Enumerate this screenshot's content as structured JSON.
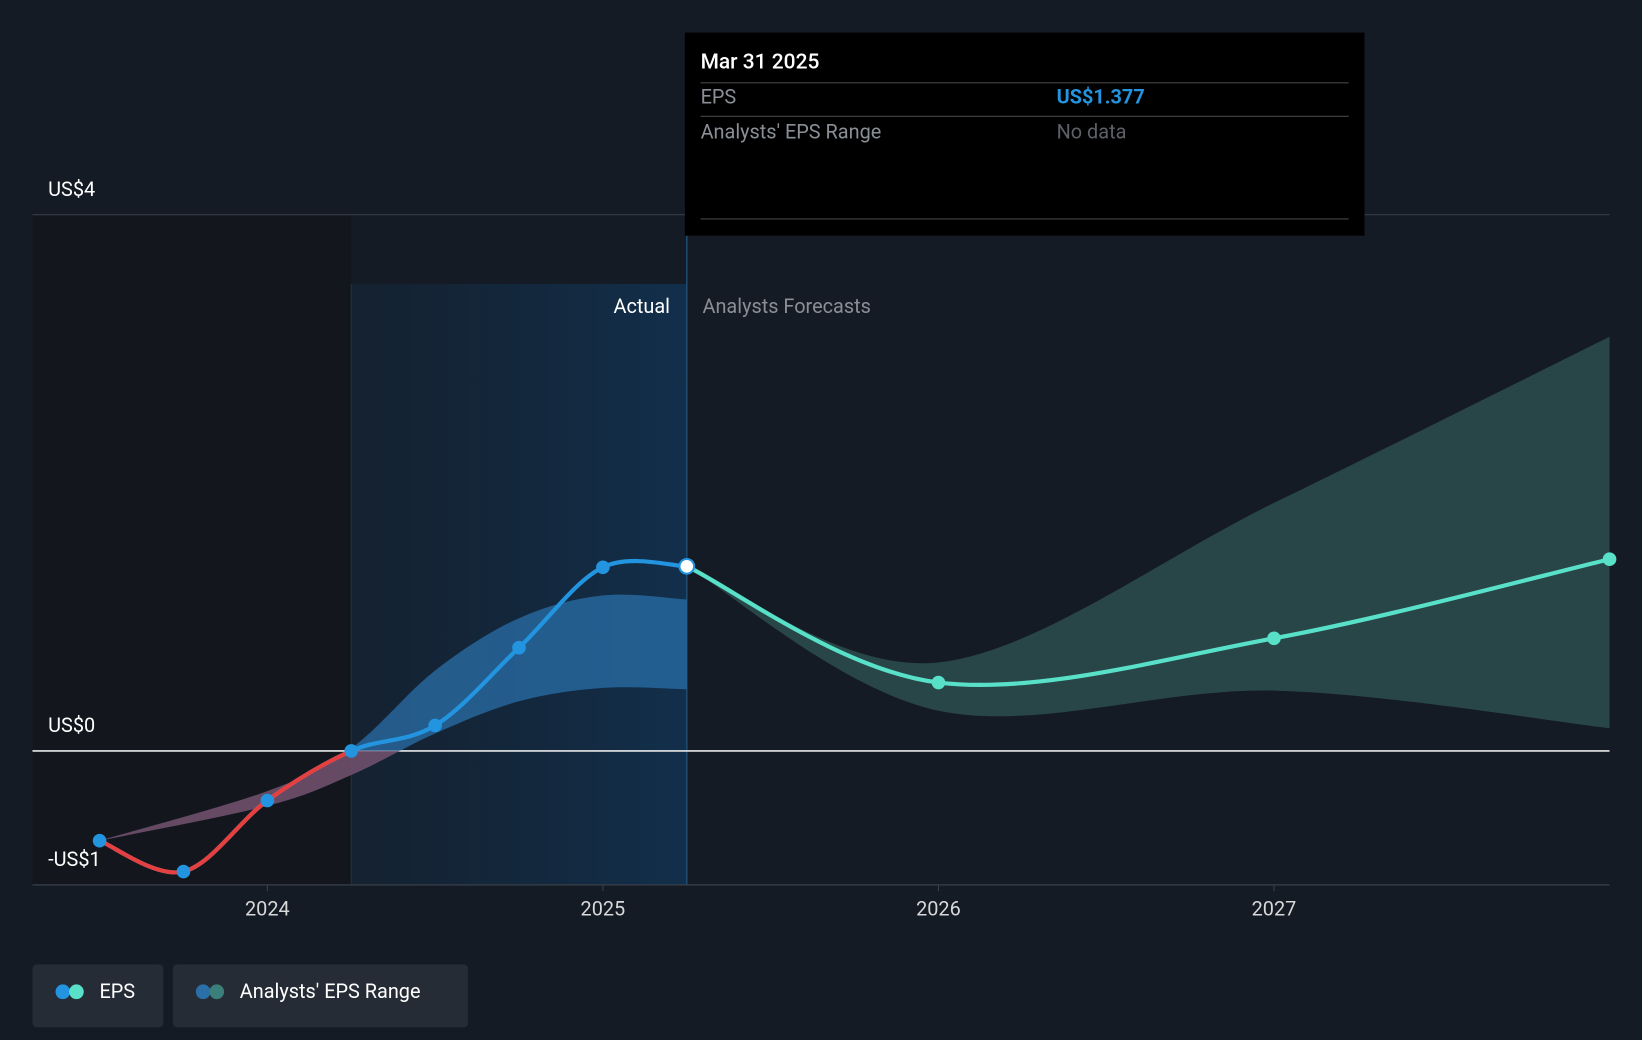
{
  "chart_data": {
    "type": "line",
    "x": [
      2023.5,
      2023.75,
      2024.0,
      2024.25,
      2024.5,
      2024.75,
      2025.0,
      2025.25,
      2026.0,
      2027.0,
      2028.0
    ],
    "xlim": [
      2023.3,
      2028.0
    ],
    "xticks": [
      2024,
      2025,
      2026,
      2027
    ],
    "ylim": [
      -1,
      4
    ],
    "yticks": [
      {
        "value": -1,
        "label": "-US$1"
      },
      {
        "value": 0,
        "label": "US$0"
      },
      {
        "value": 4,
        "label": "US$4"
      }
    ],
    "shade": [
      2024.25,
      2025.25
    ],
    "section_labels": [
      "Actual",
      "Analysts Forecasts"
    ],
    "series": [
      {
        "name": "EPS",
        "color": "#2394df",
        "forecast_color": "#58e1c8",
        "negative_color": "#e5403f",
        "values": [
          -0.67,
          -0.9,
          -0.37,
          0.0,
          0.19,
          0.77,
          1.37,
          1.377,
          0.51,
          0.84,
          1.43
        ],
        "value_labels": [
          null,
          null,
          null,
          null,
          null,
          null,
          null,
          "US$1.377",
          null,
          null,
          null
        ]
      },
      {
        "name": "Analysts' EPS Range",
        "color": "#2a6fa8",
        "forecast_color": "#2f5554",
        "bands": [
          {
            "x": [
              2023.5,
              2024.0,
              2024.25,
              2024.5,
              2024.75,
              2025.0,
              2025.25
            ],
            "low": [
              -0.67,
              -0.41,
              -0.18,
              0.13,
              0.37,
              0.47,
              0.46
            ],
            "high": [
              -0.67,
              -0.3,
              0.02,
              0.6,
              0.99,
              1.16,
              1.13
            ]
          },
          {
            "x": [
              2025.25,
              2026.0,
              2027.0,
              2028.0
            ],
            "low": [
              1.377,
              0.3,
              0.45,
              0.17
            ],
            "high": [
              1.377,
              0.66,
              1.85,
              3.09
            ]
          }
        ]
      }
    ],
    "tooltip": {
      "date": "Mar 31 2025",
      "eps_label": "EPS",
      "range_label": "Analysts' EPS Range",
      "range_value": "No data"
    }
  }
}
